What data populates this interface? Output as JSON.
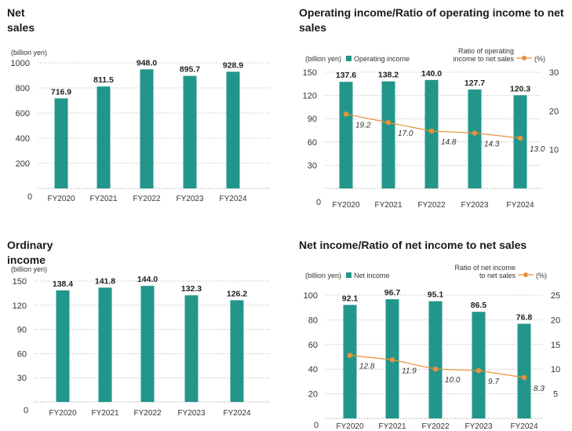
{
  "colors": {
    "bar": "#22968a",
    "line": "#e8913a",
    "grid": "#b5b5b5",
    "axis": "#8a8a8a",
    "text": "#333333"
  },
  "chart_data": [
    {
      "type": "bar",
      "title": "Net sales",
      "unit_label": "(billion yen)",
      "categories": [
        "FY2020",
        "FY2021",
        "FY2022",
        "FY2023",
        "FY2024"
      ],
      "values": [
        716.9,
        811.5,
        948.0,
        895.7,
        928.9
      ],
      "value_labels": [
        "716.9",
        "811.5",
        "948.0",
        "895.7",
        "928.9"
      ],
      "y_ticks": [
        "0",
        "200",
        "400",
        "600",
        "800",
        "1000"
      ],
      "ylim": [
        0,
        1000
      ],
      "grid": true
    },
    {
      "type": "bar",
      "title": "Operating income/Ratio of operating income to net sales",
      "unit_label": "(billion yen)",
      "legend_bar": "Operating income",
      "legend_line_lines": [
        "Ratio of operating",
        "income to net sales"
      ],
      "right_unit_label": "(%)",
      "categories": [
        "FY2020",
        "FY2021",
        "FY2022",
        "FY2023",
        "FY2024"
      ],
      "values": [
        137.6,
        138.2,
        140.0,
        127.7,
        120.3
      ],
      "value_labels": [
        "137.6",
        "138.2",
        "140.0",
        "127.7",
        "120.3"
      ],
      "line_values": [
        19.2,
        17.0,
        14.8,
        14.3,
        13.0
      ],
      "line_labels": [
        "19.2",
        "17.0",
        "14.8",
        "14.3",
        "13.0"
      ],
      "y_ticks": [
        "0",
        "30",
        "60",
        "90",
        "120",
        "150"
      ],
      "ylim": [
        0,
        150
      ],
      "y2_ticks": [
        "10",
        "20",
        "30"
      ],
      "y2lim": [
        0,
        30
      ],
      "grid": true
    },
    {
      "type": "bar",
      "title": "Ordinary income",
      "unit_label": "(billion yen)",
      "categories": [
        "FY2020",
        "FY2021",
        "FY2022",
        "FY2023",
        "FY2024"
      ],
      "values": [
        138.4,
        141.8,
        144.0,
        132.3,
        126.2
      ],
      "value_labels": [
        "138.4",
        "141.8",
        "144.0",
        "132.3",
        "126.2"
      ],
      "y_ticks": [
        "0",
        "30",
        "60",
        "90",
        "120",
        "150"
      ],
      "ylim": [
        0,
        150
      ],
      "grid": true
    },
    {
      "type": "bar",
      "title": "Net income/Ratio of net income to net sales",
      "unit_label": "(billion yen)",
      "legend_bar": "Net income",
      "legend_line_lines": [
        "Ratio of net income",
        "to net sales"
      ],
      "right_unit_label": "(%)",
      "categories": [
        "FY2020",
        "FY2021",
        "FY2022",
        "FY2023",
        "FY2024"
      ],
      "values": [
        92.1,
        96.7,
        95.1,
        86.5,
        76.8
      ],
      "value_labels": [
        "92.1",
        "96.7",
        "95.1",
        "86.5",
        "76.8"
      ],
      "line_values": [
        12.8,
        11.9,
        10.0,
        9.7,
        8.3
      ],
      "line_labels": [
        "12.8",
        "11.9",
        "10.0",
        "9.7",
        "8.3"
      ],
      "y_ticks": [
        "0",
        "20",
        "40",
        "60",
        "80",
        "100"
      ],
      "ylim": [
        0,
        100
      ],
      "y2_ticks": [
        "5",
        "10",
        "15",
        "20",
        "25"
      ],
      "y2lim": [
        0,
        25
      ],
      "grid": true
    }
  ]
}
